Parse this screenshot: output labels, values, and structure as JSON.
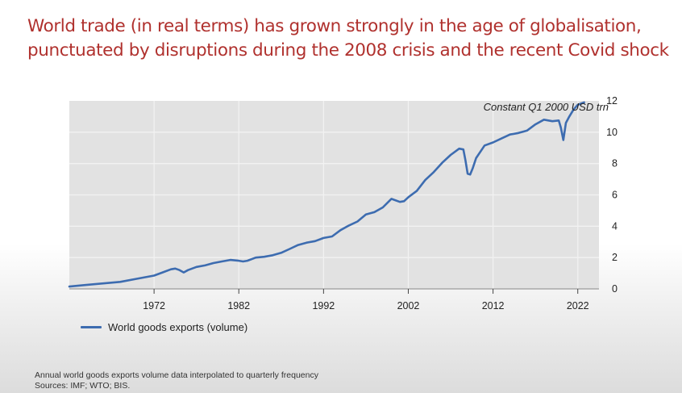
{
  "slide": {
    "title_line1": "World trade (in real terms) has grown strongly in the age of globalisation,",
    "title_line2": "punctuated by disruptions during the 2008 crisis and the recent Covid shock"
  },
  "footnote": {
    "line1": "Annual world goods exports volume data interpolated to quarterly frequency",
    "line2": "Sources: IMF; WTO; BIS."
  },
  "chart_data": {
    "type": "line",
    "unit_label": "Constant Q1 2000 USD trn",
    "xlim": [
      1962,
      2024.5
    ],
    "ylim": [
      0,
      12
    ],
    "x_ticks": [
      1972,
      1982,
      1992,
      2002,
      2012,
      2022
    ],
    "y_ticks": [
      0,
      2,
      4,
      6,
      8,
      10,
      12
    ],
    "y_axis_side": "right",
    "legend_position": "bottom-left",
    "grid": true,
    "background_color": "#e2e2e2",
    "series": [
      {
        "name": "World goods exports (volume)",
        "color": "#3d6cb0",
        "points": [
          [
            1962,
            0.15
          ],
          [
            1964,
            0.25
          ],
          [
            1966,
            0.35
          ],
          [
            1968,
            0.45
          ],
          [
            1970,
            0.65
          ],
          [
            1972,
            0.85
          ],
          [
            1973,
            1.05
          ],
          [
            1974,
            1.25
          ],
          [
            1974.5,
            1.3
          ],
          [
            1975,
            1.2
          ],
          [
            1975.5,
            1.05
          ],
          [
            1976,
            1.2
          ],
          [
            1977,
            1.4
          ],
          [
            1978,
            1.5
          ],
          [
            1979,
            1.65
          ],
          [
            1980,
            1.75
          ],
          [
            1981,
            1.85
          ],
          [
            1982,
            1.8
          ],
          [
            1982.5,
            1.75
          ],
          [
            1983,
            1.8
          ],
          [
            1984,
            2.0
          ],
          [
            1985,
            2.05
          ],
          [
            1986,
            2.15
          ],
          [
            1987,
            2.3
          ],
          [
            1988,
            2.55
          ],
          [
            1989,
            2.8
          ],
          [
            1990,
            2.95
          ],
          [
            1991,
            3.05
          ],
          [
            1992,
            3.25
          ],
          [
            1993,
            3.35
          ],
          [
            1994,
            3.75
          ],
          [
            1995,
            4.05
          ],
          [
            1996,
            4.3
          ],
          [
            1997,
            4.75
          ],
          [
            1998,
            4.9
          ],
          [
            1999,
            5.2
          ],
          [
            2000,
            5.75
          ],
          [
            2001,
            5.55
          ],
          [
            2001.5,
            5.6
          ],
          [
            2002,
            5.85
          ],
          [
            2003,
            6.25
          ],
          [
            2004,
            6.95
          ],
          [
            2005,
            7.45
          ],
          [
            2006,
            8.05
          ],
          [
            2007,
            8.55
          ],
          [
            2008,
            8.95
          ],
          [
            2008.5,
            8.9
          ],
          [
            2008.75,
            8.2
          ],
          [
            2009,
            7.35
          ],
          [
            2009.3,
            7.3
          ],
          [
            2009.6,
            7.7
          ],
          [
            2010,
            8.35
          ],
          [
            2011,
            9.15
          ],
          [
            2012,
            9.35
          ],
          [
            2013,
            9.6
          ],
          [
            2014,
            9.85
          ],
          [
            2015,
            9.95
          ],
          [
            2016,
            10.1
          ],
          [
            2017,
            10.5
          ],
          [
            2018,
            10.8
          ],
          [
            2019,
            10.7
          ],
          [
            2019.75,
            10.75
          ],
          [
            2020,
            10.3
          ],
          [
            2020.3,
            9.5
          ],
          [
            2020.6,
            10.6
          ],
          [
            2021,
            11.0
          ],
          [
            2021.5,
            11.45
          ],
          [
            2022,
            11.75
          ],
          [
            2022.75,
            11.9
          ]
        ]
      }
    ]
  }
}
